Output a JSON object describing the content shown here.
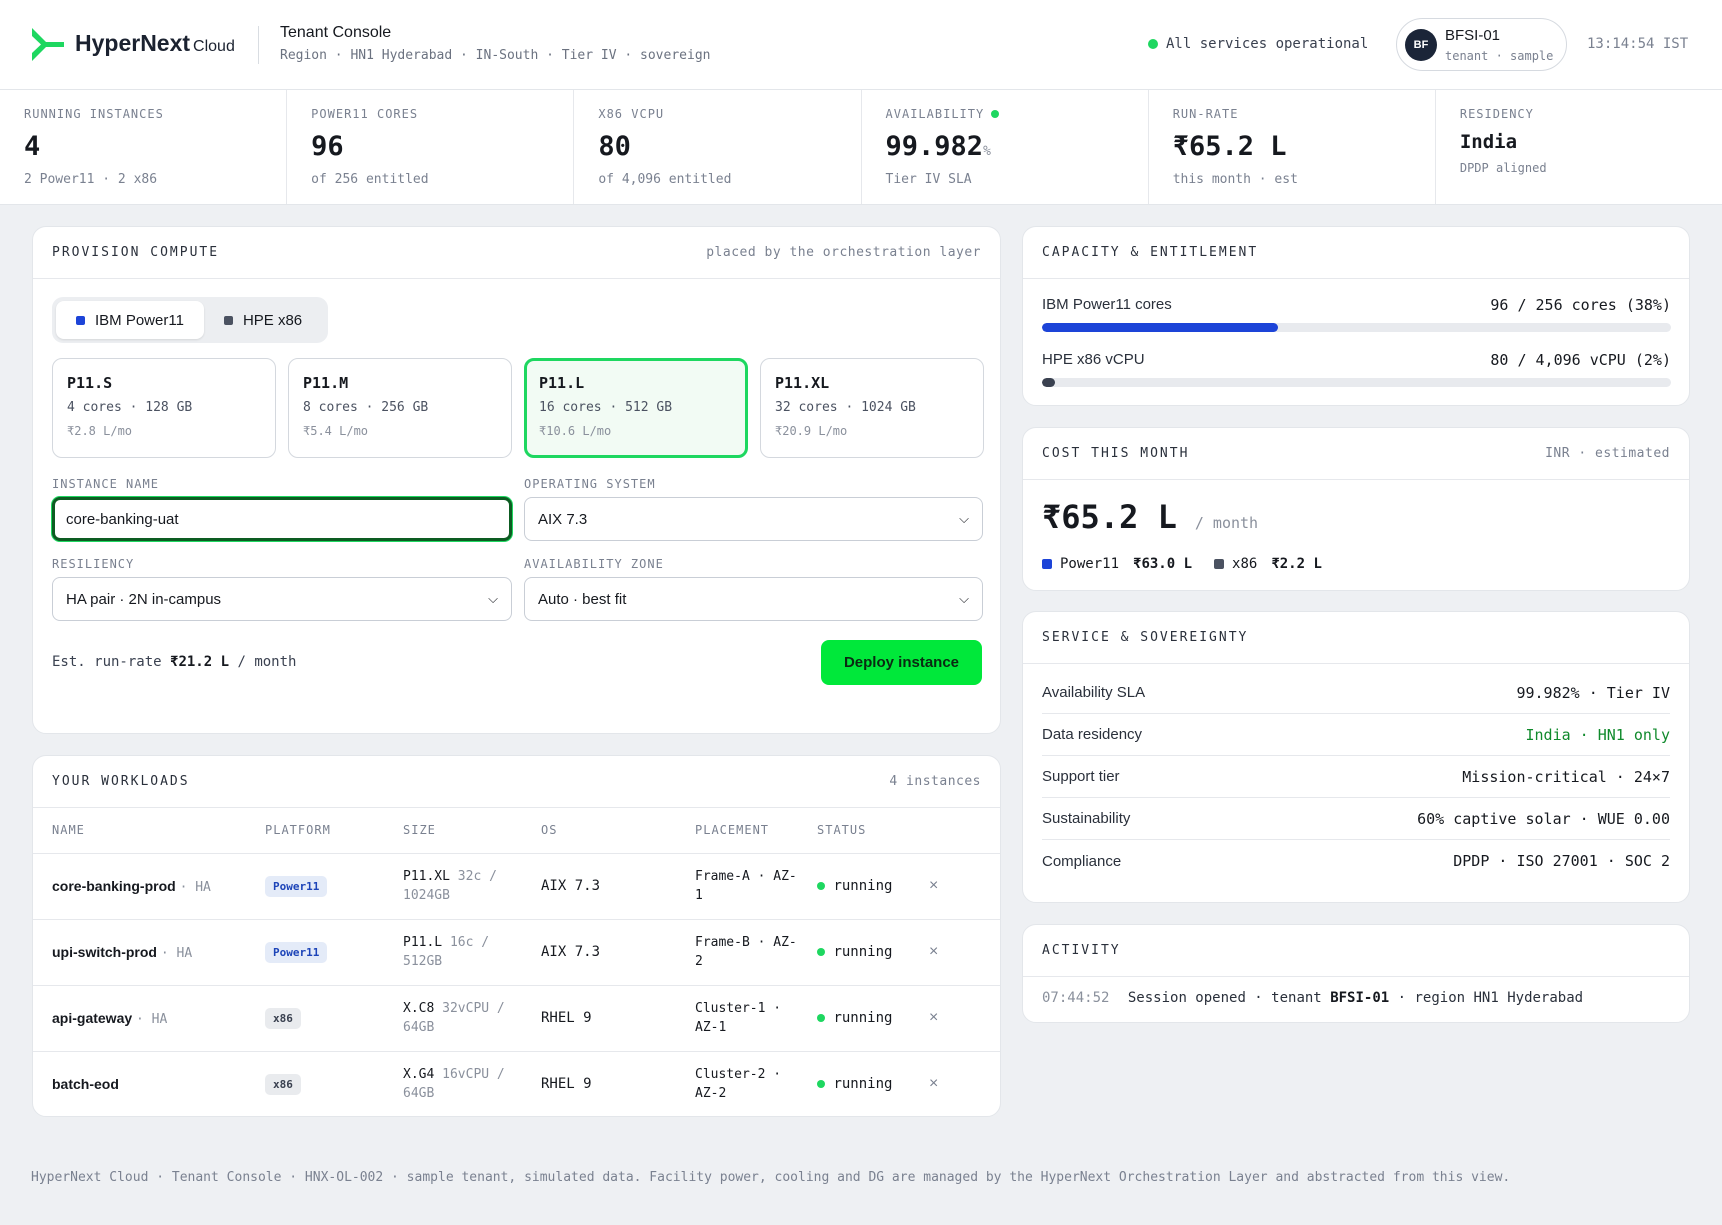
{
  "header": {
    "brand": "HyperNext",
    "brand_suffix": "Cloud",
    "console_title": "Tenant Console",
    "region_line": "Region · HN1 Hyderabad · IN-South · Tier IV · sovereign",
    "status_text": "All services operational",
    "tenant_initials": "BF",
    "tenant_name": "BFSI-01",
    "tenant_sub": "tenant · sample",
    "clock": "13:14:54 IST"
  },
  "kpis": [
    {
      "label": "RUNNING INSTANCES",
      "value": "4",
      "sub": "2 Power11 · 2 x86"
    },
    {
      "label": "POWER11 CORES",
      "value": "96",
      "sub": "of 256 entitled"
    },
    {
      "label": "X86 VCPU",
      "value": "80",
      "sub": "of 4,096 entitled"
    },
    {
      "label": "AVAILABILITY",
      "value": "99.982",
      "unit": "%",
      "sub": "Tier IV SLA"
    },
    {
      "label": "RUN-RATE",
      "value": "₹65.2 L",
      "sub": "this month · est"
    },
    {
      "label": "RESIDENCY",
      "value": "India",
      "sub": "DPDP aligned"
    }
  ],
  "provision": {
    "title": "PROVISION COMPUTE",
    "meta": "placed by the orchestration layer",
    "platforms": [
      {
        "label": "IBM Power11",
        "color": "#1d44d8",
        "selected": true
      },
      {
        "label": "HPE x86",
        "color": "#4b5261",
        "selected": false
      }
    ],
    "plans": [
      {
        "name": "P11.S",
        "spec": "4 cores · 128 GB",
        "price": "₹2.8 L/mo",
        "selected": false
      },
      {
        "name": "P11.M",
        "spec": "8 cores · 256 GB",
        "price": "₹5.4 L/mo",
        "selected": false
      },
      {
        "name": "P11.L",
        "spec": "16 cores · 512 GB",
        "price": "₹10.6 L/mo",
        "selected": true
      },
      {
        "name": "P11.XL",
        "spec": "32 cores · 1024 GB",
        "price": "₹20.9 L/mo",
        "selected": false
      }
    ],
    "instance_name_label": "INSTANCE NAME",
    "instance_name_value": "core-banking-uat",
    "os_label": "OPERATING SYSTEM",
    "os_value": "AIX 7.3",
    "resiliency_label": "RESILIENCY",
    "resiliency_value": "HA pair · 2N in-campus",
    "az_label": "AVAILABILITY ZONE",
    "az_value": "Auto · best fit",
    "est_prefix": "Est. run-rate",
    "est_value": "₹21.2 L",
    "est_suffix": "/ month",
    "deploy_label": "Deploy instance"
  },
  "workloads": {
    "title": "YOUR WORKLOADS",
    "meta": "4 instances",
    "columns": [
      "NAME",
      "PLATFORM",
      "SIZE",
      "OS",
      "PLACEMENT",
      "STATUS"
    ],
    "rows": [
      {
        "name": "core-banking-prod",
        "ha": "· HA",
        "platform": "Power11",
        "size": "P11.XL",
        "size_detail": "32c /",
        "size_detail2": "1024GB",
        "os": "AIX 7.3",
        "placement": "Frame-A · AZ-",
        "placement2": "1",
        "status": "running",
        "close": "×"
      },
      {
        "name": "upi-switch-prod",
        "ha": "· HA",
        "platform": "Power11",
        "size": "P11.L",
        "size_detail": "16c /",
        "size_detail2": "512GB",
        "os": "AIX 7.3",
        "placement": "Frame-B · AZ-",
        "placement2": "2",
        "status": "running",
        "close": "×"
      },
      {
        "name": "api-gateway",
        "ha": "· HA",
        "platform": "x86",
        "size": "X.C8",
        "size_detail": "32vCPU /",
        "size_detail2": "64GB",
        "os": "RHEL 9",
        "placement": "Cluster-1 ·",
        "placement2": "AZ-1",
        "status": "running",
        "close": "×"
      },
      {
        "name": "batch-eod",
        "ha": "",
        "platform": "x86",
        "size": "X.G4",
        "size_detail": "16vCPU /",
        "size_detail2": "64GB",
        "os": "RHEL 9",
        "placement": "Cluster-2 ·",
        "placement2": "AZ-2",
        "status": "running",
        "close": "×"
      }
    ]
  },
  "capacity": {
    "title": "CAPACITY & ENTITLEMENT",
    "items": [
      {
        "label": "IBM Power11 cores",
        "value": "96 / 256 cores (38%)",
        "fraction": 0.375,
        "color": "#1d44d8"
      },
      {
        "label": "HPE x86 vCPU",
        "value": "80 / 4,096 vCPU (2%)",
        "fraction": 0.02,
        "color": "#3a4150"
      }
    ]
  },
  "cost": {
    "title": "COST THIS MONTH",
    "meta": "INR · estimated",
    "value": "₹65.2 L",
    "unit": "/ month",
    "breakdown": [
      {
        "label": "Power11",
        "value": "₹63.0 L",
        "color": "#1d44d8"
      },
      {
        "label": "x86",
        "value": "₹2.2 L",
        "color": "#4b5261"
      }
    ]
  },
  "service": {
    "title": "SERVICE & SOVEREIGNTY",
    "rows": [
      {
        "key": "Availability SLA",
        "value": "99.982% · Tier IV"
      },
      {
        "key": "Data residency",
        "value": "India · HN1 only"
      },
      {
        "key": "Support tier",
        "value": "Mission-critical · 24×7"
      },
      {
        "key": "Sustainability",
        "value": "60% captive solar · WUE 0.00"
      },
      {
        "key": "Compliance",
        "value": "DPDP · ISO 27001 · SOC 2"
      }
    ]
  },
  "activity": {
    "title": "ACTIVITY",
    "time": "07:44:52",
    "text_a": "Session opened · tenant",
    "tenant": "BFSI-01",
    "text_b": "· region HN1 Hyderabad"
  },
  "footer": "HyperNext Cloud · Tenant Console · HNX-OL-002 · sample tenant, simulated data. Facility power, cooling and DG are managed by the HyperNext Orchestration Layer and abstracted from this view."
}
